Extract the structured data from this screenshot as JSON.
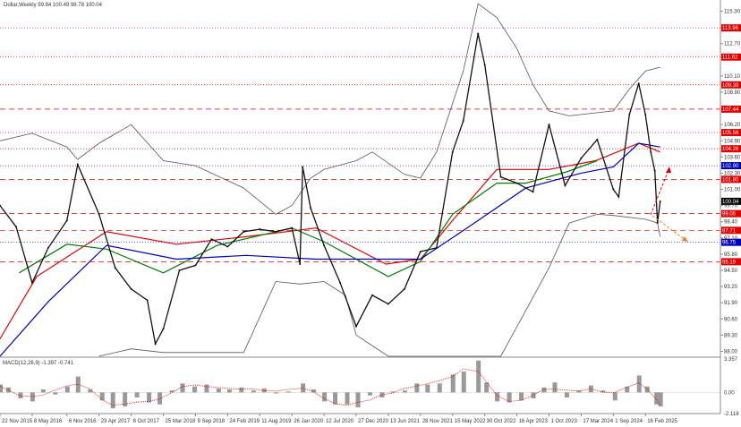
{
  "chart_data": {
    "type": "candlestick-line",
    "title": "Dollar,Weekly  99.84 100.49 98.78 100.04",
    "ylim": [
      87.6,
      116.2
    ],
    "xlim": [
      "2015-11-22",
      "2026-03-15"
    ],
    "grid": false,
    "y_ticks": [
      "115.30",
      "112.70",
      "110.10",
      "108.80",
      "106.20",
      "104.90",
      "103.60",
      "102.30",
      "101.00",
      "99.70",
      "98.40",
      "97.10",
      "95.80",
      "94.50",
      "93.20",
      "91.90",
      "90.60",
      "89.30",
      "88.00"
    ],
    "x_ticks": [
      [
        "2015-11-22",
        "22 Nov 2015"
      ],
      [
        "2016-05-08",
        "8 May 2016"
      ],
      [
        "2016-11-06",
        "6 Nov 2016"
      ],
      [
        "2017-04-23",
        "23 Apr 2017"
      ],
      [
        "2017-10-08",
        "8 Oct 2017"
      ],
      [
        "2018-03-25",
        "25 Mar 2018"
      ],
      [
        "2018-09-09",
        "9 Sep 2018"
      ],
      [
        "2019-02-24",
        "24 Feb 2019"
      ],
      [
        "2019-08-11",
        "11 Aug 2019"
      ],
      [
        "2020-01-26",
        "26 Jan 2020"
      ],
      [
        "2020-07-12",
        "12 Jul 2020"
      ],
      [
        "2020-12-27",
        "27 Dec 2020"
      ],
      [
        "2021-06-13",
        "13 Jun 2021"
      ],
      [
        "2021-11-28",
        "28 Nov 2021"
      ],
      [
        "2022-05-15",
        "15 May 2022"
      ],
      [
        "2022-10-30",
        "30 Oct 2022"
      ],
      [
        "2023-04-16",
        "16 Apr 2023"
      ],
      [
        "2023-10-01",
        "1 Oct 2023"
      ],
      [
        "2024-03-17",
        "17 Mar 2024"
      ],
      [
        "2024-09-01",
        "1 Sep 2024"
      ],
      [
        "2025-02-16",
        "16 Feb 2025"
      ]
    ],
    "price": [
      [
        "2015-11-22",
        99.7
      ],
      [
        "2016-02-14",
        98.0
      ],
      [
        "2016-05-08",
        93.5
      ],
      [
        "2016-07-31",
        96.3
      ],
      [
        "2016-11-06",
        98.5
      ],
      [
        "2017-01-01",
        103.0
      ],
      [
        "2017-04-23",
        99.0
      ],
      [
        "2017-07-16",
        94.7
      ],
      [
        "2017-10-08",
        93.0
      ],
      [
        "2017-12-31",
        92.1
      ],
      [
        "2018-02-11",
        88.6
      ],
      [
        "2018-03-25",
        89.8
      ],
      [
        "2018-06-17",
        94.5
      ],
      [
        "2018-09-09",
        94.9
      ],
      [
        "2018-12-02",
        97.0
      ],
      [
        "2019-02-24",
        96.4
      ],
      [
        "2019-05-19",
        97.6
      ],
      [
        "2019-08-11",
        97.8
      ],
      [
        "2019-11-03",
        97.6
      ],
      [
        "2020-01-26",
        97.9
      ],
      [
        "2020-03-08",
        95.0
      ],
      [
        "2020-03-22",
        102.8
      ],
      [
        "2020-05-03",
        99.5
      ],
      [
        "2020-07-12",
        96.5
      ],
      [
        "2020-10-04",
        93.5
      ],
      [
        "2020-12-27",
        90.0
      ],
      [
        "2021-03-21",
        92.5
      ],
      [
        "2021-06-13",
        91.8
      ],
      [
        "2021-09-05",
        93.0
      ],
      [
        "2021-11-28",
        96.0
      ],
      [
        "2022-02-20",
        96.3
      ],
      [
        "2022-05-15",
        104.0
      ],
      [
        "2022-07-10",
        106.5
      ],
      [
        "2022-09-25",
        113.5
      ],
      [
        "2022-10-30",
        111.0
      ],
      [
        "2023-01-22",
        102.0
      ],
      [
        "2023-04-16",
        101.5
      ],
      [
        "2023-07-09",
        100.8
      ],
      [
        "2023-10-01",
        106.2
      ],
      [
        "2023-12-24",
        101.3
      ],
      [
        "2024-03-17",
        103.5
      ],
      [
        "2024-06-09",
        105.0
      ],
      [
        "2024-09-01",
        101.0
      ],
      [
        "2024-09-29",
        100.4
      ],
      [
        "2024-11-24",
        107.0
      ],
      [
        "2025-01-12",
        109.5
      ],
      [
        "2025-02-16",
        107.0
      ],
      [
        "2025-03-16",
        104.0
      ],
      [
        "2025-04-06",
        102.5
      ],
      [
        "2025-04-20",
        98.3
      ],
      [
        "2025-05-04",
        100.04
      ]
    ],
    "moving_averages": [
      {
        "color": "#e00000",
        "values": [
          [
            "2015-11-22",
            89.0
          ],
          [
            "2016-06-01",
            94.0
          ],
          [
            "2017-06-01",
            97.6
          ],
          [
            "2018-06-01",
            96.6
          ],
          [
            "2019-06-01",
            97.2
          ],
          [
            "2020-06-01",
            97.9
          ],
          [
            "2021-06-01",
            95.0
          ],
          [
            "2021-11-28",
            95.4
          ],
          [
            "2022-05-15",
            98.5
          ],
          [
            "2023-01-01",
            102.6
          ],
          [
            "2023-10-01",
            102.6
          ],
          [
            "2024-06-01",
            103.3
          ],
          [
            "2025-01-12",
            104.7
          ],
          [
            "2025-05-04",
            104.0
          ]
        ]
      },
      {
        "color": "#008000",
        "values": [
          [
            "2016-03-01",
            94.3
          ],
          [
            "2016-11-06",
            96.6
          ],
          [
            "2017-06-01",
            96.2
          ],
          [
            "2018-03-25",
            94.3
          ],
          [
            "2019-01-01",
            96.5
          ],
          [
            "2020-01-26",
            97.9
          ],
          [
            "2020-07-12",
            96.8
          ],
          [
            "2021-06-13",
            94.0
          ],
          [
            "2021-11-28",
            95.2
          ],
          [
            "2022-05-15",
            99.0
          ],
          [
            "2023-01-01",
            101.5
          ],
          [
            "2023-06-01",
            101.5
          ],
          [
            "2024-01-01",
            102.4
          ],
          [
            "2024-06-09",
            103.3
          ]
        ]
      },
      {
        "color": "#0000c0",
        "values": [
          [
            "2015-11-22",
            87.6
          ],
          [
            "2016-08-01",
            92.0
          ],
          [
            "2017-06-01",
            96.5
          ],
          [
            "2018-06-01",
            95.4
          ],
          [
            "2019-06-01",
            95.7
          ],
          [
            "2020-06-01",
            95.4
          ],
          [
            "2021-06-01",
            95.4
          ],
          [
            "2021-11-28",
            95.4
          ],
          [
            "2022-07-01",
            97.6
          ],
          [
            "2023-06-01",
            101.1
          ],
          [
            "2024-03-17",
            102.3
          ],
          [
            "2024-09-01",
            102.8
          ],
          [
            "2025-01-12",
            104.7
          ],
          [
            "2025-05-04",
            104.4
          ]
        ]
      }
    ],
    "bollinger": {
      "color": "#555555",
      "upper": [
        [
          "2015-11-22",
          104.9
        ],
        [
          "2016-05-08",
          105.5
        ],
        [
          "2016-11-06",
          104.4
        ],
        [
          "2017-01-01",
          103.4
        ],
        [
          "2017-04-23",
          104.7
        ],
        [
          "2017-10-08",
          106.2
        ],
        [
          "2018-03-25",
          103.3
        ],
        [
          "2018-09-09",
          102.9
        ],
        [
          "2019-05-19",
          101.1
        ],
        [
          "2019-11-03",
          99.0
        ],
        [
          "2020-01-26",
          99.7
        ],
        [
          "2020-05-03",
          101.9
        ],
        [
          "2020-07-12",
          102.6
        ],
        [
          "2020-12-27",
          103.3
        ],
        [
          "2021-03-21",
          104.0
        ],
        [
          "2021-09-05",
          102.2
        ],
        [
          "2021-11-28",
          101.9
        ],
        [
          "2022-02-20",
          104.0
        ],
        [
          "2022-07-10",
          110.5
        ],
        [
          "2022-09-25",
          115.9
        ],
        [
          "2023-01-01",
          114.8
        ],
        [
          "2023-04-16",
          112.3
        ],
        [
          "2023-07-09",
          109.4
        ],
        [
          "2023-10-01",
          107.3
        ],
        [
          "2024-01-15",
          106.9
        ],
        [
          "2024-09-01",
          107.3
        ],
        [
          "2024-11-24",
          109.05
        ],
        [
          "2025-02-16",
          110.5
        ],
        [
          "2025-05-04",
          110.8
        ]
      ],
      "lower": [
        [
          "2017-04-23",
          87.6
        ],
        [
          "2017-10-08",
          88.2
        ],
        [
          "2018-03-25",
          87.9
        ],
        [
          "2019-05-19",
          87.9
        ],
        [
          "2019-11-03",
          93.6
        ],
        [
          "2020-03-08",
          93.4
        ],
        [
          "2020-07-12",
          93.6
        ],
        [
          "2020-11-01",
          92.5
        ],
        [
          "2020-12-27",
          89.3
        ],
        [
          "2021-06-13",
          87.6
        ],
        [
          "2023-01-22",
          87.6
        ],
        [
          "2023-10-01",
          94.7
        ],
        [
          "2024-01-15",
          98.3
        ],
        [
          "2024-06-09",
          99.0
        ],
        [
          "2024-09-01",
          98.9
        ],
        [
          "2025-02-16",
          98.6
        ],
        [
          "2025-04-20",
          98.3
        ],
        [
          "2025-05-04",
          97.2
        ]
      ]
    },
    "levels": [
      {
        "value": "113.96",
        "color": "#e00000",
        "style": "dotted"
      },
      {
        "value": "111.62",
        "color": "#e00000",
        "style": "dotted"
      },
      {
        "value": "109.39",
        "color": "#e00000",
        "style": "dotted"
      },
      {
        "value": "107.44",
        "color": "#e00000",
        "style": "dashed"
      },
      {
        "value": "105.56",
        "color": "#e00000",
        "style": "dotted"
      },
      {
        "value": "104.26",
        "color": "#e00000",
        "style": "dotted"
      },
      {
        "value": "102.90",
        "color": "#0000c0",
        "style": "dotted"
      },
      {
        "value": "101.80",
        "color": "#e00000",
        "style": "dashed"
      },
      {
        "value": "100.04",
        "color": "#000000",
        "style": "none"
      },
      {
        "value": "99.05",
        "color": "#e00000",
        "style": "dashed"
      },
      {
        "value": "97.71",
        "color": "#e00000",
        "style": "dashed"
      },
      {
        "value": "96.75",
        "color": "#0000c0",
        "style": "dotted"
      },
      {
        "value": "95.19",
        "color": "#e00000",
        "style": "dashed"
      }
    ],
    "macd": {
      "label": "MACD(12,26,9) -1.397 -0.741",
      "ylim": [
        -2.118,
        3.357
      ],
      "ticks": [
        "3.357",
        "0.00",
        "-2.118"
      ],
      "histogram": [
        [
          "2015-11-22",
          0.8
        ],
        [
          "2016-01-03",
          0.5
        ],
        [
          "2016-03-06",
          -0.6
        ],
        [
          "2016-05-08",
          -0.9
        ],
        [
          "2016-07-03",
          0.3
        ],
        [
          "2016-09-04",
          -0.2
        ],
        [
          "2016-11-06",
          0.6
        ],
        [
          "2017-01-01",
          1.6
        ],
        [
          "2017-03-05",
          0.3
        ],
        [
          "2017-05-07",
          -0.8
        ],
        [
          "2017-07-02",
          -1.6
        ],
        [
          "2017-09-03",
          -1.4
        ],
        [
          "2017-11-05",
          -0.5
        ],
        [
          "2018-01-07",
          -1.0
        ],
        [
          "2018-03-04",
          -1.2
        ],
        [
          "2018-05-06",
          0.2
        ],
        [
          "2018-07-01",
          0.9
        ],
        [
          "2018-09-02",
          0.6
        ],
        [
          "2018-11-04",
          0.8
        ],
        [
          "2019-01-06",
          0.4
        ],
        [
          "2019-03-03",
          0.3
        ],
        [
          "2019-05-05",
          0.5
        ],
        [
          "2019-07-07",
          0.2
        ],
        [
          "2019-09-01",
          0.4
        ],
        [
          "2019-11-03",
          -0.1
        ],
        [
          "2020-01-05",
          0.1
        ],
        [
          "2020-03-22",
          0.9
        ],
        [
          "2020-05-17",
          0.3
        ],
        [
          "2020-07-12",
          -0.9
        ],
        [
          "2020-09-06",
          -1.2
        ],
        [
          "2020-11-08",
          -1.2
        ],
        [
          "2021-01-03",
          -1.5
        ],
        [
          "2021-03-07",
          -0.3
        ],
        [
          "2021-05-09",
          -0.5
        ],
        [
          "2021-07-04",
          0.1
        ],
        [
          "2021-09-05",
          0.2
        ],
        [
          "2021-11-07",
          0.9
        ],
        [
          "2022-01-02",
          0.8
        ],
        [
          "2022-03-06",
          0.9
        ],
        [
          "2022-05-15",
          1.8
        ],
        [
          "2022-07-10",
          2.1
        ],
        [
          "2022-09-25",
          3.2
        ],
        [
          "2022-11-06",
          1.0
        ],
        [
          "2023-01-01",
          -0.9
        ],
        [
          "2023-03-05",
          -1.0
        ],
        [
          "2023-05-07",
          -0.8
        ],
        [
          "2023-07-09",
          -0.6
        ],
        [
          "2023-09-03",
          0.5
        ],
        [
          "2023-10-29",
          1.0
        ],
        [
          "2023-12-31",
          -0.5
        ],
        [
          "2024-03-03",
          0.2
        ],
        [
          "2024-05-05",
          0.7
        ],
        [
          "2024-07-07",
          0.2
        ],
        [
          "2024-09-08",
          -0.8
        ],
        [
          "2024-11-10",
          0.6
        ],
        [
          "2025-01-12",
          1.7
        ],
        [
          "2025-02-23",
          0.6
        ],
        [
          "2025-04-13",
          -1.2
        ],
        [
          "2025-05-04",
          -1.4
        ]
      ]
    }
  }
}
